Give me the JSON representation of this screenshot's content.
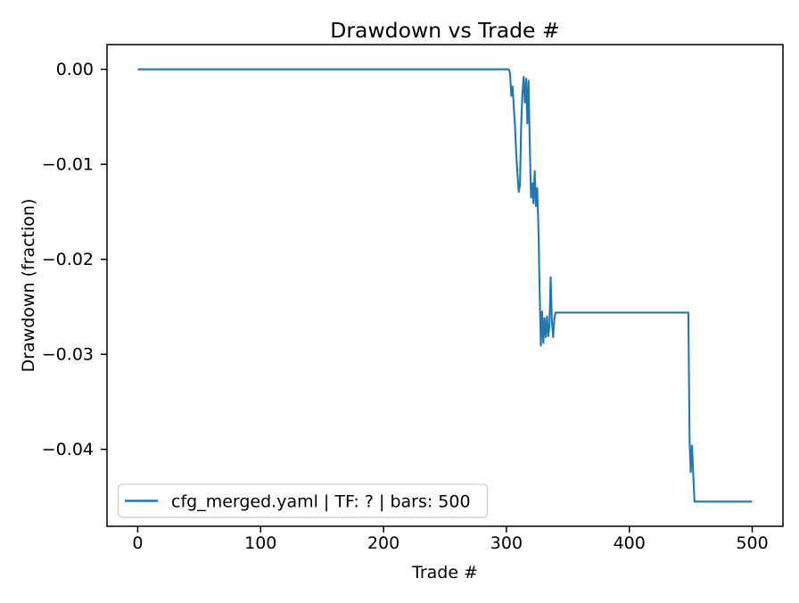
{
  "chart_data": {
    "type": "line",
    "title": "Drawdown vs Trade #",
    "xlabel": "Trade #",
    "ylabel": "Drawdown (fraction)",
    "x_ticks": [
      0,
      100,
      200,
      300,
      400,
      500
    ],
    "y_ticks": [
      {
        "label": "0.00",
        "value": 0.0
      },
      {
        "label": "−0.01",
        "value": -0.01
      },
      {
        "label": "−0.02",
        "value": -0.02
      },
      {
        "label": "−0.03",
        "value": -0.03
      },
      {
        "label": "−0.04",
        "value": -0.04
      }
    ],
    "xlim": [
      -25,
      525
    ],
    "ylim": [
      0.0026,
      -0.0481
    ],
    "grid": false,
    "legend": {
      "position": "lower left",
      "entries": [
        {
          "label": "cfg_merged.yaml | TF: ? | bars: 500",
          "color": "#1f77b4"
        }
      ]
    },
    "series": [
      {
        "name": "cfg_merged.yaml | TF: ? | bars: 500",
        "color": "#1f77b4",
        "points": [
          [
            0,
            0.0
          ],
          [
            302,
            0.0
          ],
          [
            303,
            -0.0005
          ],
          [
            304,
            -0.0028
          ],
          [
            305,
            -0.0018
          ],
          [
            306,
            -0.004
          ],
          [
            307,
            -0.0061
          ],
          [
            308,
            -0.0089
          ],
          [
            309,
            -0.011
          ],
          [
            310,
            -0.0129
          ],
          [
            311,
            -0.0122
          ],
          [
            312,
            -0.006
          ],
          [
            313,
            -0.0026
          ],
          [
            314,
            -0.0008
          ],
          [
            315,
            -0.0035
          ],
          [
            316,
            -0.001
          ],
          [
            317,
            -0.0057
          ],
          [
            318,
            -0.0012
          ],
          [
            319,
            -0.008
          ],
          [
            320,
            -0.0135
          ],
          [
            321,
            -0.012
          ],
          [
            322,
            -0.0141
          ],
          [
            323,
            -0.0107
          ],
          [
            324,
            -0.0144
          ],
          [
            325,
            -0.0125
          ],
          [
            326,
            -0.0163
          ],
          [
            327,
            -0.023
          ],
          [
            328,
            -0.0291
          ],
          [
            329,
            -0.0255
          ],
          [
            330,
            -0.0288
          ],
          [
            331,
            -0.0262
          ],
          [
            332,
            -0.0282
          ],
          [
            333,
            -0.026
          ],
          [
            334,
            -0.0281
          ],
          [
            335,
            -0.027
          ],
          [
            336,
            -0.0219
          ],
          [
            337,
            -0.0265
          ],
          [
            338,
            -0.0282
          ],
          [
            339,
            -0.0262
          ],
          [
            340,
            -0.0256
          ],
          [
            448,
            -0.0256
          ],
          [
            449,
            -0.039
          ],
          [
            450,
            -0.0424
          ],
          [
            451,
            -0.0396
          ],
          [
            452,
            -0.0426
          ],
          [
            453,
            -0.0455
          ],
          [
            500,
            -0.0455
          ]
        ]
      }
    ]
  },
  "colors": {
    "line": "#1f77b4",
    "spine": "#000000",
    "text": "#000000",
    "legend_border": "#cccccc",
    "legend_background": "#ffffff",
    "background": "#ffffff"
  }
}
